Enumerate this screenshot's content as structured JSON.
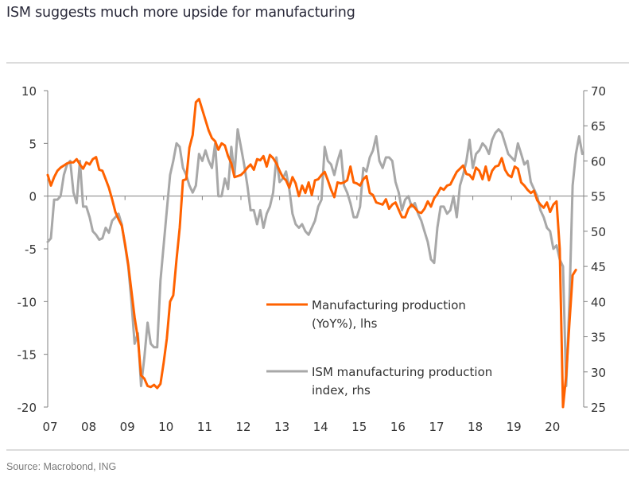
{
  "title": "ISM suggests much more upside for manufacturing",
  "source": "Source: Macrobond, ING",
  "colors": {
    "orange": "#ff6200",
    "grey": "#a8a8a8",
    "axis": "#808080"
  },
  "chart_data": {
    "type": "line",
    "title": "ISM suggests much more upside for manufacturing",
    "xlabel": "",
    "ylabel_left": "",
    "ylabel_right": "",
    "x_start": "2007-01",
    "x_frequency": "monthly",
    "x_ticks": [
      "07",
      "08",
      "09",
      "10",
      "11",
      "12",
      "13",
      "14",
      "15",
      "16",
      "17",
      "18",
      "19",
      "20"
    ],
    "y_left": {
      "lim": [
        -20,
        10
      ],
      "ticks": [
        "10",
        "5",
        "0",
        "-5",
        "-10",
        "-15",
        "-20"
      ]
    },
    "y_right": {
      "lim": [
        25,
        70
      ],
      "ticks": [
        "70",
        "65",
        "60",
        "55",
        "50",
        "45",
        "40",
        "35",
        "30",
        "25"
      ]
    },
    "grid": false,
    "legend_position": "center-bottom",
    "series": [
      {
        "name": "Manufacturing production (YoY%), lhs",
        "legend_lines": [
          "Manufacturing production",
          "(YoY%), lhs"
        ],
        "axis": "left",
        "color": "#ff6200",
        "values": [
          2.0,
          1.0,
          1.8,
          2.4,
          2.7,
          2.9,
          3.1,
          3.2,
          3.2,
          3.5,
          3.0,
          2.6,
          3.2,
          3.0,
          3.5,
          3.7,
          2.5,
          2.4,
          1.6,
          0.8,
          -0.3,
          -1.5,
          -2.2,
          -2.8,
          -4.5,
          -6.5,
          -9.0,
          -11.5,
          -13.5,
          -17.0,
          -17.3,
          -18.0,
          -18.1,
          -17.9,
          -18.2,
          -17.8,
          -15.8,
          -13.5,
          -10.0,
          -9.4,
          -6.0,
          -3.0,
          1.5,
          1.6,
          4.6,
          5.8,
          8.9,
          9.2,
          8.2,
          7.2,
          6.2,
          5.5,
          5.2,
          4.4,
          5.0,
          4.8,
          3.8,
          3.1,
          1.8,
          1.9,
          2.0,
          2.3,
          2.7,
          3.0,
          2.5,
          3.5,
          3.4,
          3.8,
          2.8,
          3.9,
          3.6,
          3.1,
          2.4,
          1.8,
          1.5,
          0.8,
          1.8,
          1.2,
          0.0,
          1.0,
          0.3,
          1.3,
          0.1,
          1.5,
          1.6,
          2.0,
          2.3,
          1.5,
          0.6,
          -0.1,
          1.3,
          1.2,
          1.3,
          1.5,
          2.8,
          1.3,
          1.2,
          1.0,
          1.6,
          1.9,
          0.3,
          0.1,
          -0.6,
          -0.7,
          -0.8,
          -0.3,
          -1.2,
          -0.8,
          -0.6,
          -1.3,
          -2.0,
          -2.0,
          -1.2,
          -0.8,
          -1.1,
          -1.5,
          -1.6,
          -1.2,
          -0.5,
          -1.0,
          -0.2,
          0.2,
          0.8,
          0.6,
          1.0,
          1.1,
          1.7,
          2.3,
          2.6,
          2.9,
          2.1,
          2.0,
          1.6,
          2.7,
          2.4,
          1.6,
          2.8,
          1.5,
          2.4,
          2.8,
          2.9,
          3.6,
          2.5,
          2.0,
          1.8,
          2.8,
          2.6,
          1.3,
          1.0,
          0.6,
          0.3,
          0.5,
          -0.4,
          -0.8,
          -1.1,
          -0.6,
          -1.5,
          -0.8,
          -0.5,
          -5.0,
          -20.0,
          -17.0,
          -12.0,
          -7.5,
          -7.0
        ]
      },
      {
        "name": "ISM manufacturing production index, rhs",
        "legend_lines": [
          "ISM manufacturing production",
          "index, rhs"
        ],
        "axis": "right",
        "color": "#a8a8a8",
        "values": [
          48.5,
          49.0,
          54.5,
          54.5,
          55.0,
          58.0,
          59.5,
          60.0,
          55.5,
          54.0,
          60.0,
          53.5,
          53.5,
          52.0,
          50.0,
          49.5,
          48.8,
          49.0,
          50.5,
          49.8,
          51.5,
          52.0,
          52.5,
          51.0,
          48.0,
          45.0,
          40.0,
          34.0,
          35.5,
          28.0,
          32.0,
          37.0,
          34.0,
          33.5,
          33.5,
          43.0,
          48.0,
          53.0,
          58.0,
          60.0,
          62.5,
          62.0,
          59.0,
          58.0,
          56.5,
          55.5,
          56.5,
          61.0,
          60.0,
          61.5,
          60.0,
          59.0,
          62.5,
          55.0,
          55.0,
          57.5,
          56.0,
          62.0,
          58.0,
          64.5,
          62.0,
          59.5,
          56.5,
          53.0,
          53.0,
          51.0,
          53.0,
          50.5,
          52.5,
          53.5,
          55.5,
          60.5,
          57.0,
          57.5,
          58.5,
          56.0,
          52.5,
          51.0,
          50.5,
          51.0,
          50.0,
          49.5,
          50.5,
          51.5,
          53.5,
          54.5,
          62.0,
          60.0,
          59.5,
          58.0,
          60.0,
          61.5,
          56.5,
          55.5,
          54.0,
          52.0,
          52.0,
          53.5,
          59.0,
          58.5,
          60.5,
          61.5,
          63.5,
          60.0,
          59.0,
          60.5,
          60.5,
          60.0,
          57.0,
          55.5,
          53.0,
          54.5,
          55.0,
          53.5,
          54.0,
          52.5,
          51.5,
          50.0,
          48.5,
          46.0,
          45.5,
          50.5,
          53.5,
          53.5,
          52.5,
          53.0,
          55.0,
          52.0,
          56.5,
          58.0,
          60.0,
          63.0,
          59.0,
          61.0,
          61.5,
          62.5,
          62.0,
          61.0,
          63.0,
          64.0,
          64.5,
          64.0,
          62.5,
          61.0,
          60.5,
          60.0,
          62.5,
          61.0,
          59.5,
          60.0,
          57.0,
          56.0,
          55.0,
          53.0,
          52.0,
          50.5,
          50.0,
          47.5,
          48.0,
          46.0,
          45.0,
          28.0,
          40.0,
          56.5,
          61.0,
          63.5,
          61.0
        ]
      }
    ]
  }
}
